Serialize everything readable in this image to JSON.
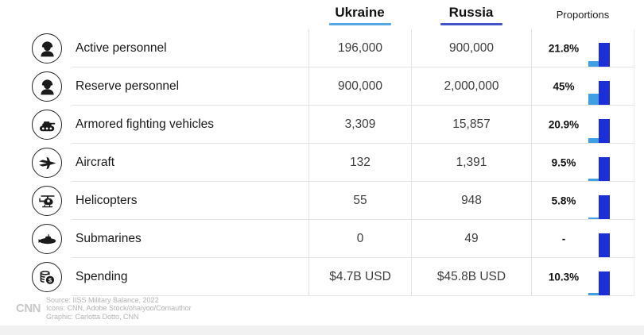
{
  "header": {
    "ukraine": "Ukraine",
    "russia": "Russia",
    "proportions": "Proportions"
  },
  "colors": {
    "ukraine_accent": "#55a7e3",
    "russia_accent": "#4353c9",
    "bar_light": "#3f9fe2",
    "bar_dark": "#1c2ed6"
  },
  "rows": [
    {
      "label": "Active personnel",
      "icon": "soldier-icon",
      "ukraine": "196,000",
      "russia": "900,000",
      "proportion": "21.8%",
      "proportion_value": 21.8
    },
    {
      "label": "Reserve personnel",
      "icon": "soldier-icon",
      "ukraine": "900,000",
      "russia": "2,000,000",
      "proportion": "45%",
      "proportion_value": 45
    },
    {
      "label": "Armored fighting vehicles",
      "icon": "tank-icon",
      "ukraine": "3,309",
      "russia": "15,857",
      "proportion": "20.9%",
      "proportion_value": 20.9
    },
    {
      "label": "Aircraft",
      "icon": "fighter-jet-icon",
      "ukraine": "132",
      "russia": "1,391",
      "proportion": "9.5%",
      "proportion_value": 9.5
    },
    {
      "label": "Helicopters",
      "icon": "helicopter-icon",
      "ukraine": "55",
      "russia": "948",
      "proportion": "5.8%",
      "proportion_value": 5.8
    },
    {
      "label": "Submarines",
      "icon": "submarine-icon",
      "ukraine": "0",
      "russia": "49",
      "proportion": "-",
      "proportion_value": null
    },
    {
      "label": "Spending",
      "icon": "coins-icon",
      "ukraine": "$4.7B USD",
      "russia": "$45.8B USD",
      "proportion": "10.3%",
      "proportion_value": 10.3
    }
  ],
  "footer": {
    "logo": "CNN",
    "source": "Source:  IISS Military Balance, 2022",
    "icons_credit": "Icons: CNN, Adobe Stock/ohaiyoo/Comauthor",
    "graphic_credit": "Graphic: Carlotta Dotto, CNN"
  },
  "chart_data": {
    "type": "table",
    "title": "",
    "categories": [
      "Active personnel",
      "Reserve personnel",
      "Armored fighting vehicles",
      "Aircraft",
      "Helicopters",
      "Submarines",
      "Spending"
    ],
    "series": [
      {
        "name": "Ukraine",
        "values": [
          196000,
          900000,
          3309,
          132,
          55,
          0,
          4.7
        ],
        "display": [
          "196,000",
          "900,000",
          "3,309",
          "132",
          "55",
          "0",
          "$4.7B USD"
        ]
      },
      {
        "name": "Russia",
        "values": [
          900000,
          2000000,
          15857,
          1391,
          948,
          49,
          45.8
        ],
        "display": [
          "900,000",
          "2,000,000",
          "15,857",
          "1,391",
          "948",
          "49",
          "$45.8B USD"
        ]
      },
      {
        "name": "Proportions",
        "values": [
          21.8,
          45,
          20.9,
          9.5,
          5.8,
          null,
          10.3
        ],
        "display": [
          "21.8%",
          "45%",
          "20.9%",
          "9.5%",
          "5.8%",
          "-",
          "10.3%"
        ]
      }
    ],
    "legend_position": "none",
    "grid": false,
    "notes": "Each row shows a mini bar pair: light blue Ukraine bar scaled to proportion % of the full-height dark blue Russia bar"
  }
}
